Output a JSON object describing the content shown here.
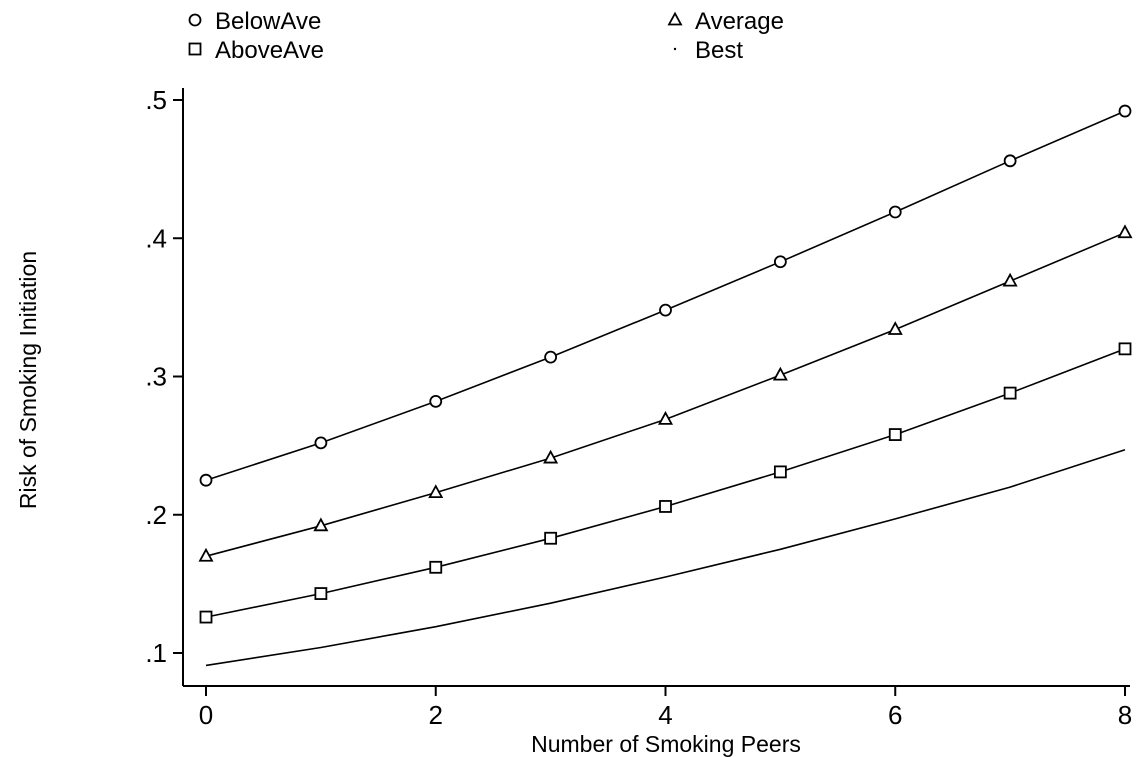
{
  "chart_data": {
    "type": "line",
    "title": "",
    "xlabel": "Number of Smoking Peers",
    "ylabel": "Risk of Smoking Initiation",
    "xlim": [
      0,
      8
    ],
    "ylim": [
      0.09,
      0.5
    ],
    "xticks": [
      0,
      2,
      4,
      6,
      8
    ],
    "xtick_labels": [
      "0",
      "2",
      "4",
      "6",
      "8"
    ],
    "yticks": [
      0.1,
      0.2,
      0.3,
      0.4,
      0.5
    ],
    "ytick_labels": [
      ".1",
      ".2",
      ".3",
      ".4",
      ".5"
    ],
    "grid": false,
    "legend_position": "top",
    "x": [
      0,
      1,
      2,
      3,
      4,
      5,
      6,
      7,
      8
    ],
    "series": [
      {
        "name": "BelowAve",
        "marker": "circle",
        "values": [
          0.225,
          0.252,
          0.282,
          0.314,
          0.348,
          0.383,
          0.419,
          0.456,
          0.492
        ]
      },
      {
        "name": "Average",
        "marker": "triangle",
        "values": [
          0.17,
          0.192,
          0.216,
          0.241,
          0.269,
          0.301,
          0.334,
          0.369,
          0.404
        ]
      },
      {
        "name": "AboveAve",
        "marker": "square",
        "values": [
          0.126,
          0.143,
          0.162,
          0.183,
          0.206,
          0.231,
          0.258,
          0.288,
          0.32
        ]
      },
      {
        "name": "Best",
        "marker": "dot",
        "values": [
          0.091,
          0.104,
          0.119,
          0.136,
          0.155,
          0.175,
          0.197,
          0.22,
          0.247
        ]
      }
    ]
  }
}
